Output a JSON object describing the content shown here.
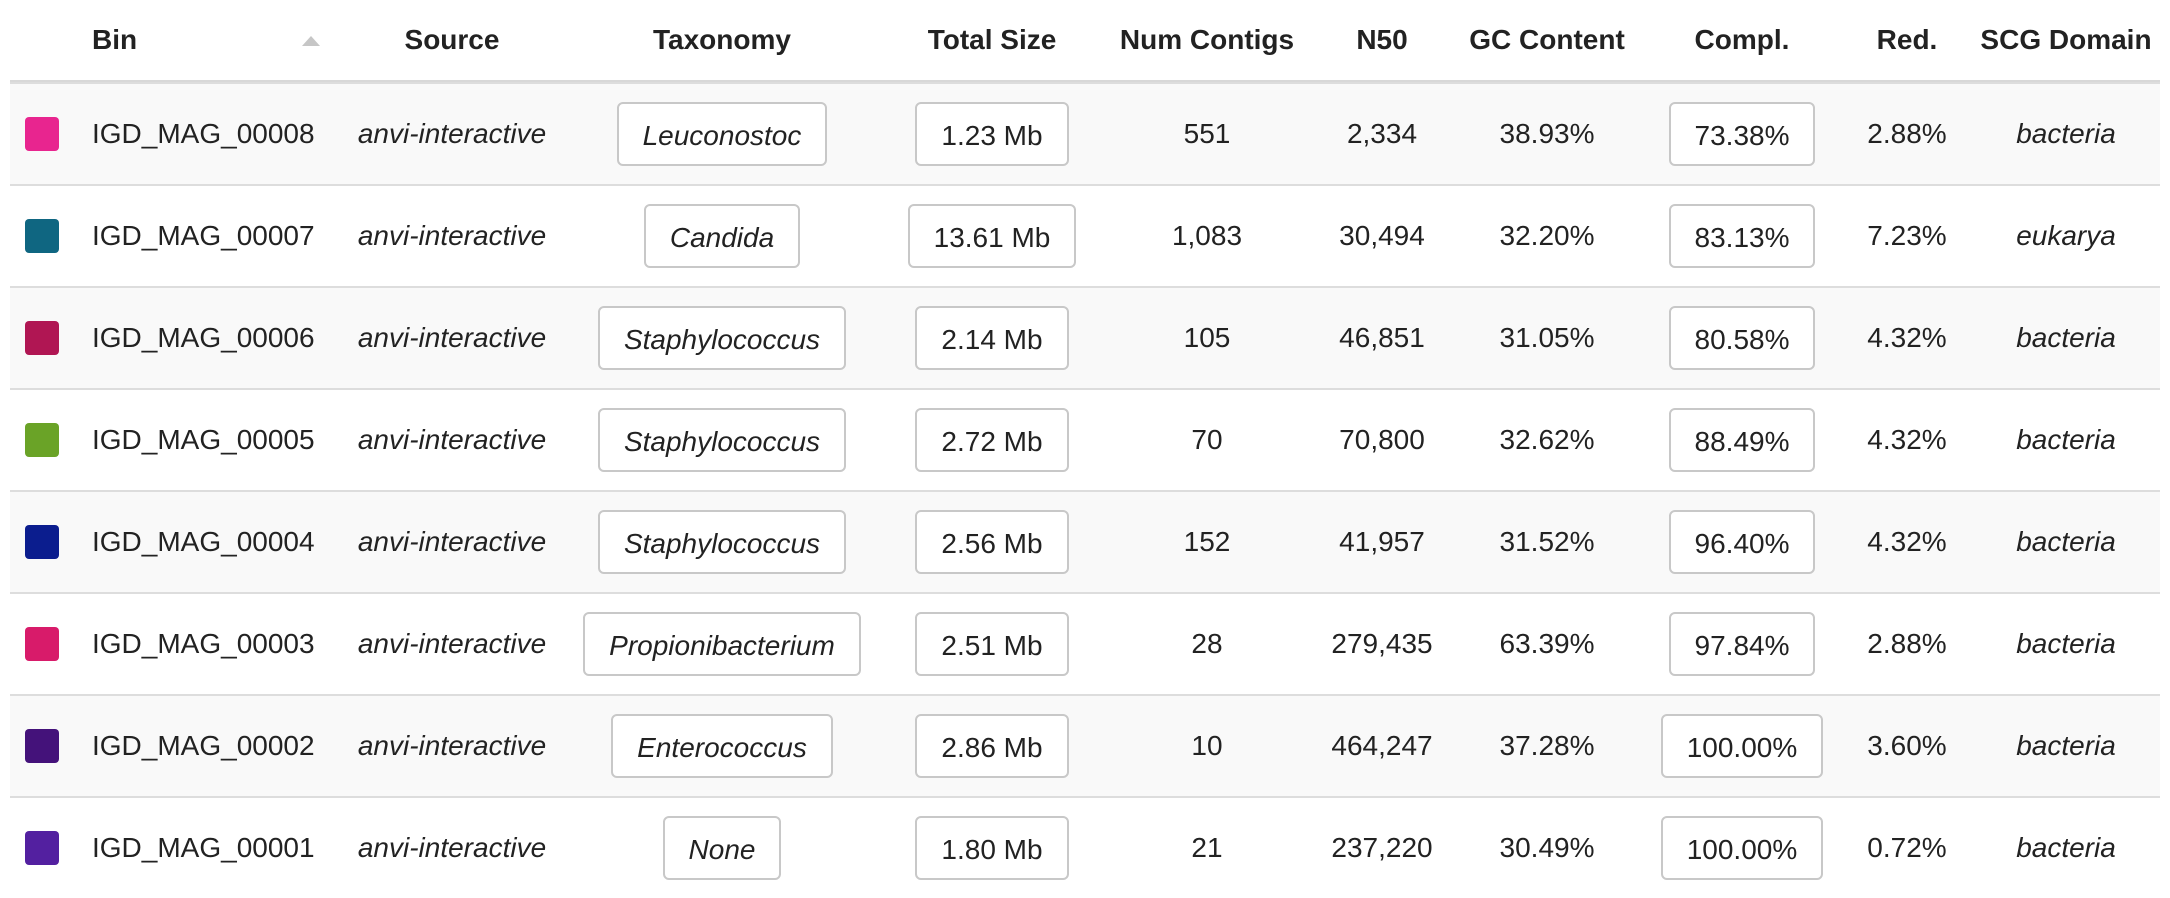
{
  "headers": {
    "bin": "Bin",
    "source": "Source",
    "taxonomy": "Taxonomy",
    "total_size": "Total Size",
    "num_contigs": "Num Contigs",
    "n50": "N50",
    "gc_content": "GC Content",
    "completion": "Compl.",
    "redundancy": "Red.",
    "scg_domain": "SCG Domain"
  },
  "sort": {
    "column": "bin",
    "icon": "sort-up-icon"
  },
  "rows": [
    {
      "color": "#e8258f",
      "bin": "IGD_MAG_00008",
      "source": "anvi-interactive",
      "taxonomy": "Leuconostoc",
      "total_size": "1.23 Mb",
      "num_contigs": "551",
      "n50": "2,334",
      "gc": "38.93%",
      "completion": "73.38%",
      "redundancy": "2.88%",
      "domain": "bacteria"
    },
    {
      "color": "#0f6681",
      "bin": "IGD_MAG_00007",
      "source": "anvi-interactive",
      "taxonomy": "Candida",
      "total_size": "13.61 Mb",
      "num_contigs": "1,083",
      "n50": "30,494",
      "gc": "32.20%",
      "completion": "83.13%",
      "redundancy": "7.23%",
      "domain": "eukarya"
    },
    {
      "color": "#b01653",
      "bin": "IGD_MAG_00006",
      "source": "anvi-interactive",
      "taxonomy": "Staphylococcus",
      "total_size": "2.14 Mb",
      "num_contigs": "105",
      "n50": "46,851",
      "gc": "31.05%",
      "completion": "80.58%",
      "redundancy": "4.32%",
      "domain": "bacteria"
    },
    {
      "color": "#6aa327",
      "bin": "IGD_MAG_00005",
      "source": "anvi-interactive",
      "taxonomy": "Staphylococcus",
      "total_size": "2.72 Mb",
      "num_contigs": "70",
      "n50": "70,800",
      "gc": "32.62%",
      "completion": "88.49%",
      "redundancy": "4.32%",
      "domain": "bacteria"
    },
    {
      "color": "#0b1d8e",
      "bin": "IGD_MAG_00004",
      "source": "anvi-interactive",
      "taxonomy": "Staphylococcus",
      "total_size": "2.56 Mb",
      "num_contigs": "152",
      "n50": "41,957",
      "gc": "31.52%",
      "completion": "96.40%",
      "redundancy": "4.32%",
      "domain": "bacteria"
    },
    {
      "color": "#d81b6a",
      "bin": "IGD_MAG_00003",
      "source": "anvi-interactive",
      "taxonomy": "Propionibacterium",
      "total_size": "2.51 Mb",
      "num_contigs": "28",
      "n50": "279,435",
      "gc": "63.39%",
      "completion": "97.84%",
      "redundancy": "2.88%",
      "domain": "bacteria"
    },
    {
      "color": "#44127a",
      "bin": "IGD_MAG_00002",
      "source": "anvi-interactive",
      "taxonomy": "Enterococcus",
      "total_size": "2.86 Mb",
      "num_contigs": "10",
      "n50": "464,247",
      "gc": "37.28%",
      "completion": "100.00%",
      "redundancy": "3.60%",
      "domain": "bacteria"
    },
    {
      "color": "#5320a0",
      "bin": "IGD_MAG_00001",
      "source": "anvi-interactive",
      "taxonomy": "None",
      "total_size": "1.80 Mb",
      "num_contigs": "21",
      "n50": "237,220",
      "gc": "30.49%",
      "completion": "100.00%",
      "redundancy": "0.72%",
      "domain": "bacteria"
    }
  ]
}
